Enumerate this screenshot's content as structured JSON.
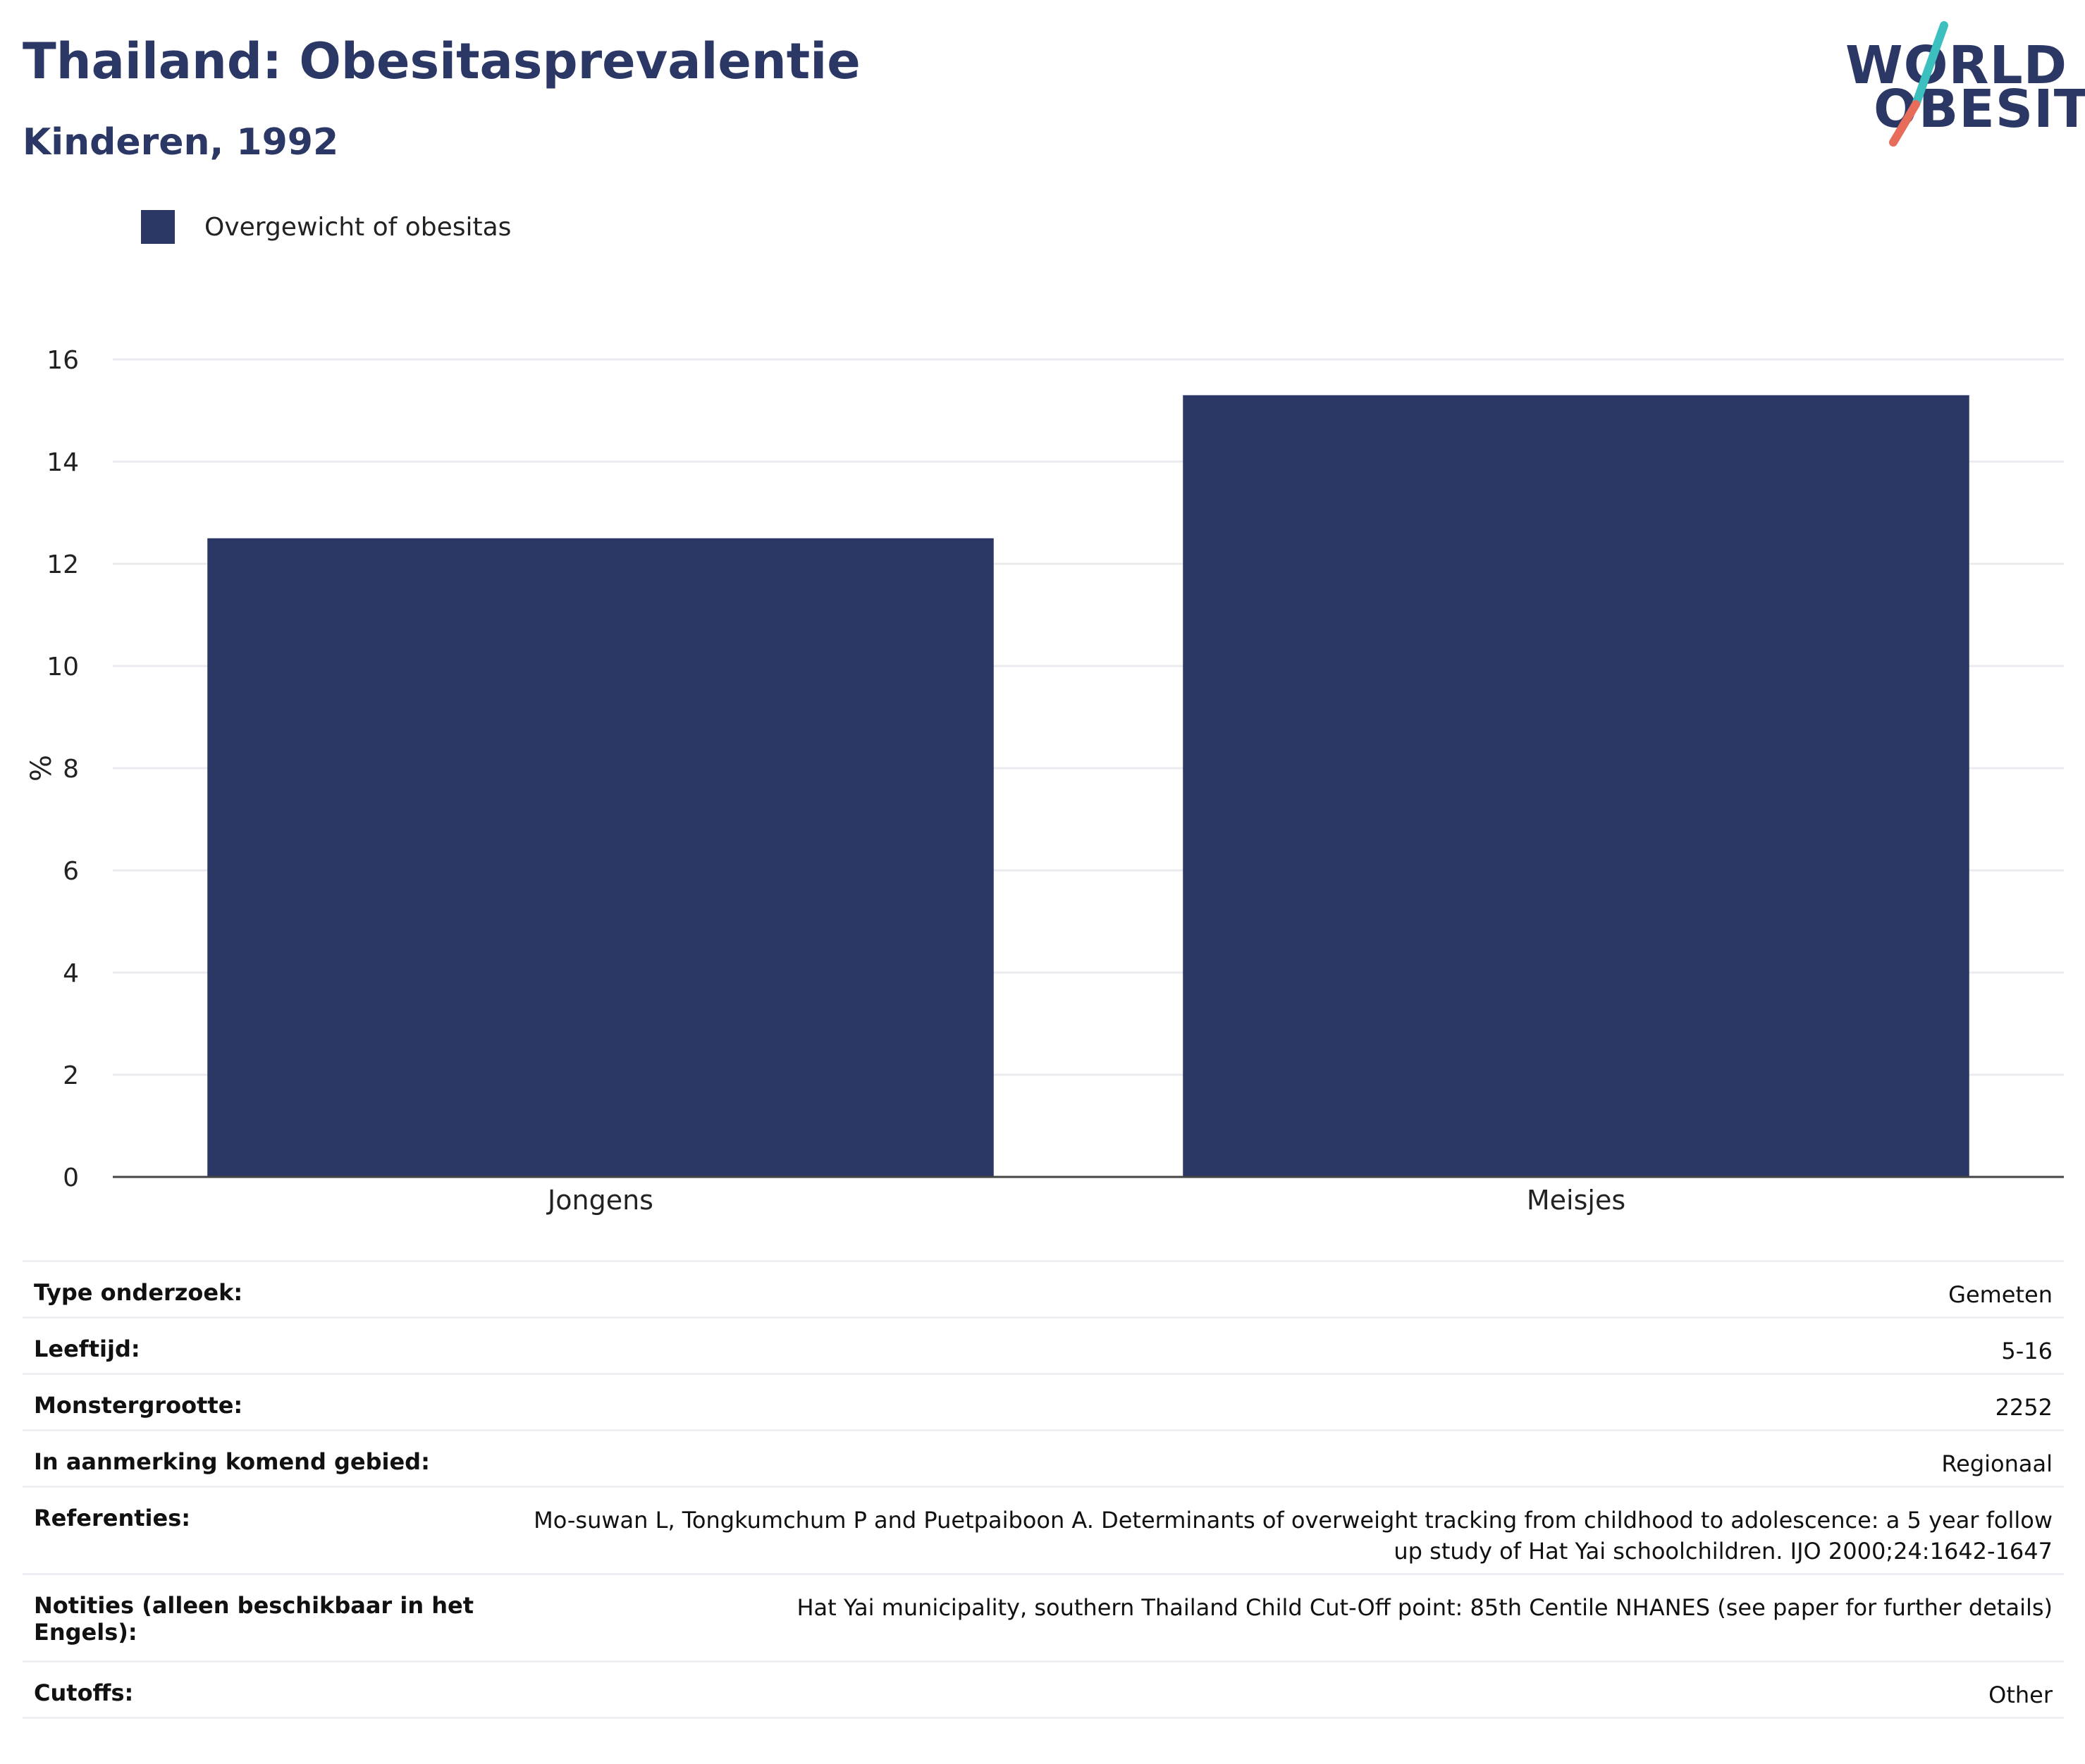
{
  "header": {
    "title": "Thailand: Obesitasprevalentie",
    "subtitle": "Kinderen, 1992"
  },
  "logo": {
    "line1": "WORLD",
    "line2": "OBESITY"
  },
  "colors": {
    "bar": "#2b3764",
    "accent_teal": "#3bbfbf",
    "accent_coral": "#e86c5a"
  },
  "chart_data": {
    "type": "bar",
    "categories": [
      "Jongens",
      "Meisjes"
    ],
    "series": [
      {
        "name": "Overgewicht of obesitas",
        "values": [
          12.5,
          15.3
        ]
      }
    ],
    "ylabel": "%",
    "ylim": [
      0,
      16
    ],
    "yticks": [
      0,
      2,
      4,
      6,
      8,
      10,
      12,
      14,
      16
    ],
    "grid": true,
    "legend_position": "top-left"
  },
  "info": [
    {
      "label": "Type onderzoek:",
      "value": "Gemeten"
    },
    {
      "label": "Leeftijd:",
      "value": "5-16"
    },
    {
      "label": "Monstergrootte:",
      "value": "2252"
    },
    {
      "label": "In aanmerking komend gebied:",
      "value": "Regionaal"
    },
    {
      "label": "Referenties:",
      "value": "Mo-suwan L, Tongkumchum P and Puetpaiboon A. Determinants of overweight tracking from childhood to adolescence: a 5 year follow up study of Hat Yai schoolchildren. IJO 2000;24:1642-1647"
    },
    {
      "label": "Notities (alleen beschikbaar in het Engels):",
      "value": "Hat Yai municipality, southern Thailand Child Cut-Off point: 85th Centile NHANES (see paper for further details)"
    },
    {
      "label": "Cutoffs:",
      "value": "Other"
    }
  ]
}
